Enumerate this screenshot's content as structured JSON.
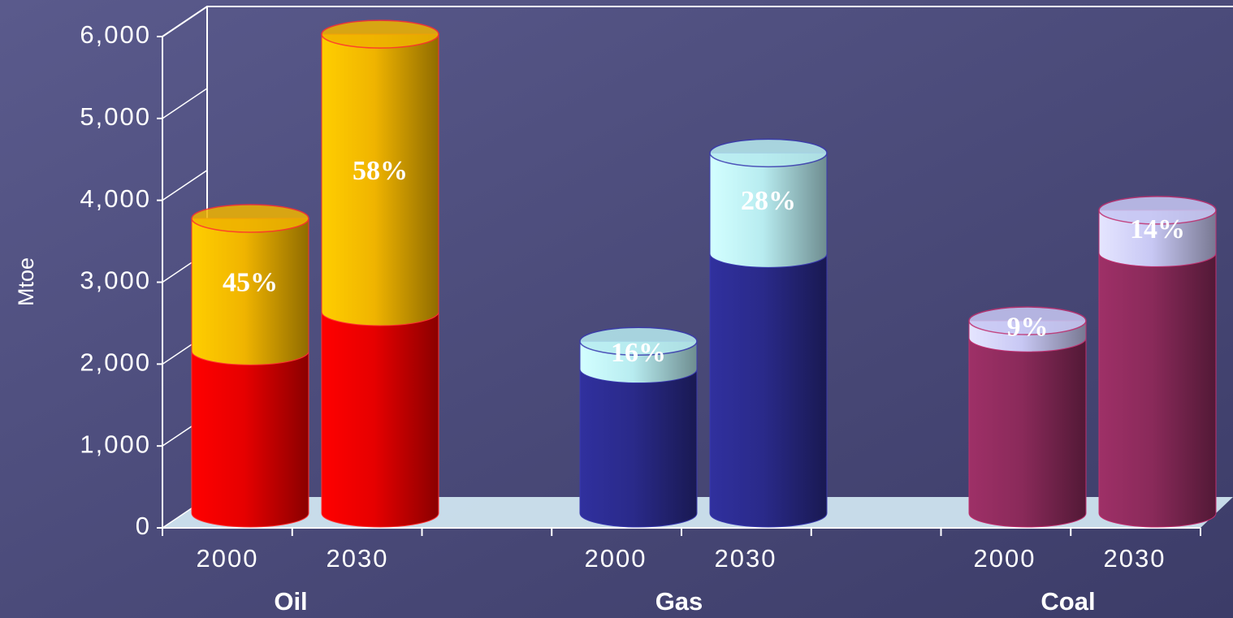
{
  "chart_data": {
    "type": "bar",
    "stacked": true,
    "y_label": "Mtoe",
    "groups": [
      "Oil",
      "Gas",
      "Coal"
    ],
    "categories": [
      "2000",
      "2030",
      "2000",
      "2030",
      "2000",
      "2030"
    ],
    "series": [
      {
        "values": [
          1980,
          2460,
          1760,
          3170,
          2140,
          3180
        ],
        "colors": [
          "#e60000",
          "#e60000",
          "#2a2a8a",
          "#2a2a8a",
          "#8a2a5a",
          "#8a2a5a"
        ]
      },
      {
        "values": [
          1620,
          3390,
          340,
          1230,
          210,
          520
        ],
        "colors": [
          "#f0b400",
          "#f0b400",
          "#b8ecf0",
          "#b8ecf0",
          "#c8c8f4",
          "#c8c8f4"
        ]
      }
    ],
    "share_labels": [
      "45%",
      "58%",
      "16%",
      "28%",
      "9%",
      "14%"
    ],
    "ylim": [
      0,
      6000
    ],
    "yticks": [
      {
        "value": 0,
        "label": "0"
      },
      {
        "value": 1000,
        "label": "1,000"
      },
      {
        "value": 2000,
        "label": "2,000"
      },
      {
        "value": 3000,
        "label": "3,000"
      },
      {
        "value": 4000,
        "label": "4,000"
      },
      {
        "value": 5000,
        "label": "5,000"
      },
      {
        "value": 6000,
        "label": "6,000"
      }
    ]
  }
}
